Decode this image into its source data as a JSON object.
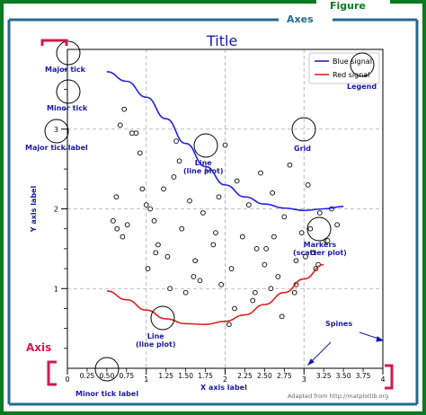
{
  "figure_label": "Figure",
  "axes_label": "Axes",
  "axis_label": "Axis",
  "title": "Title",
  "xlabel": "X axis label",
  "ylabel": "Y axis label",
  "credit": "Adapted from http://matplotlib.org",
  "annotations": {
    "major_tick": "Major tick",
    "minor_tick": "Minor tick",
    "major_tick_label": "Major tick label",
    "minor_tick_label": "Minor tick label",
    "line_plot_top": "Line\n(line plot)",
    "line_plot_bottom": "Line\n(line plot)",
    "grid": "Grid",
    "markers": "Markers\n(scatter plot)",
    "legend": "Legend",
    "spines": "Spines"
  },
  "colors": {
    "figure_border": "#0b7a22",
    "axes_frame": "#246b8f",
    "axis_bracket": "#d11a4c",
    "annotation": "#1a1aa8",
    "blue_line": "#2222dd",
    "red_line": "#dd2222"
  },
  "chart_data": {
    "type": "line",
    "xlim": [
      0,
      4
    ],
    "ylim": [
      0,
      4
    ],
    "grid": true,
    "legend_position": "top-right",
    "x_major_ticks": [
      0,
      1,
      2,
      3,
      4
    ],
    "x_minor_tick_labels": [
      "0.25",
      "0.50",
      "0.75",
      "1.25",
      "1.50",
      "1.75",
      "2.25",
      "2.50",
      "2.75",
      "3.25",
      "3.50",
      "3.75"
    ],
    "x_minor_tick_values": [
      0.25,
      0.5,
      0.75,
      1.25,
      1.5,
      1.75,
      2.25,
      2.5,
      2.75,
      3.25,
      3.5,
      3.75
    ],
    "y_major_ticks": [
      1,
      2,
      3
    ],
    "y_minor_ticks": [
      0.25,
      0.5,
      0.75,
      1.25,
      1.5,
      1.75,
      2.25,
      2.5,
      2.75,
      3.25,
      3.5,
      3.75
    ],
    "series": [
      {
        "name": "Blue signal",
        "kind": "line",
        "color": "#2222dd",
        "x": [
          0.5,
          0.75,
          1.0,
          1.25,
          1.5,
          1.75,
          2.0,
          2.25,
          2.5,
          2.75,
          3.0,
          3.25,
          3.5
        ],
        "y": [
          3.72,
          3.6,
          3.4,
          3.13,
          2.82,
          2.53,
          2.3,
          2.15,
          2.06,
          2.01,
          1.98,
          2.0,
          2.03
        ]
      },
      {
        "name": "Red signal",
        "kind": "line",
        "color": "#dd2222",
        "x": [
          0.5,
          0.75,
          1.0,
          1.25,
          1.5,
          1.75,
          2.0,
          2.25,
          2.5,
          2.75,
          3.0,
          3.25
        ],
        "y": [
          0.97,
          0.86,
          0.73,
          0.62,
          0.56,
          0.55,
          0.59,
          0.67,
          0.8,
          0.95,
          1.12,
          1.3
        ]
      },
      {
        "name": "",
        "kind": "scatter",
        "x": [
          0.67,
          0.72,
          0.87,
          0.92,
          1.05,
          1.1,
          1.22,
          1.27,
          1.3,
          1.38,
          1.42,
          1.45,
          1.55,
          1.62,
          1.72,
          1.78,
          1.85,
          1.92,
          2.0,
          2.08,
          2.15,
          2.22,
          2.3,
          2.38,
          2.45,
          2.52,
          2.6,
          2.67,
          2.75,
          2.82,
          2.9,
          2.97,
          3.05,
          3.12,
          3.2,
          3.28,
          3.35,
          3.42,
          0.58,
          0.63,
          0.76,
          0.82,
          0.95,
          1.02,
          1.15,
          1.35,
          1.5,
          1.68,
          1.95,
          2.12,
          2.35,
          2.58,
          2.72,
          2.88,
          3.02,
          3.18,
          3.3,
          0.7,
          1.0,
          1.6,
          2.05,
          2.5,
          2.9,
          3.15,
          0.62,
          1.12,
          1.88,
          2.4,
          2.62,
          3.08
        ],
        "y": [
          3.05,
          3.25,
          2.95,
          2.7,
          2.0,
          1.85,
          2.25,
          1.4,
          1.0,
          2.85,
          2.6,
          1.75,
          2.1,
          1.35,
          1.95,
          2.5,
          1.55,
          2.15,
          2.8,
          1.25,
          2.35,
          1.65,
          2.05,
          0.95,
          2.45,
          1.5,
          2.2,
          1.15,
          1.9,
          2.55,
          1.35,
          1.7,
          2.3,
          1.45,
          1.95,
          1.6,
          2.0,
          1.8,
          1.85,
          1.75,
          1.8,
          2.95,
          2.25,
          1.25,
          1.55,
          2.4,
          0.95,
          1.1,
          1.05,
          0.75,
          0.85,
          1.0,
          0.65,
          0.95,
          1.4,
          1.3,
          1.6,
          1.65,
          2.05,
          1.15,
          0.55,
          1.3,
          1.05,
          1.25,
          2.15,
          1.45,
          1.7,
          1.5,
          1.65,
          1.75
        ]
      }
    ]
  }
}
